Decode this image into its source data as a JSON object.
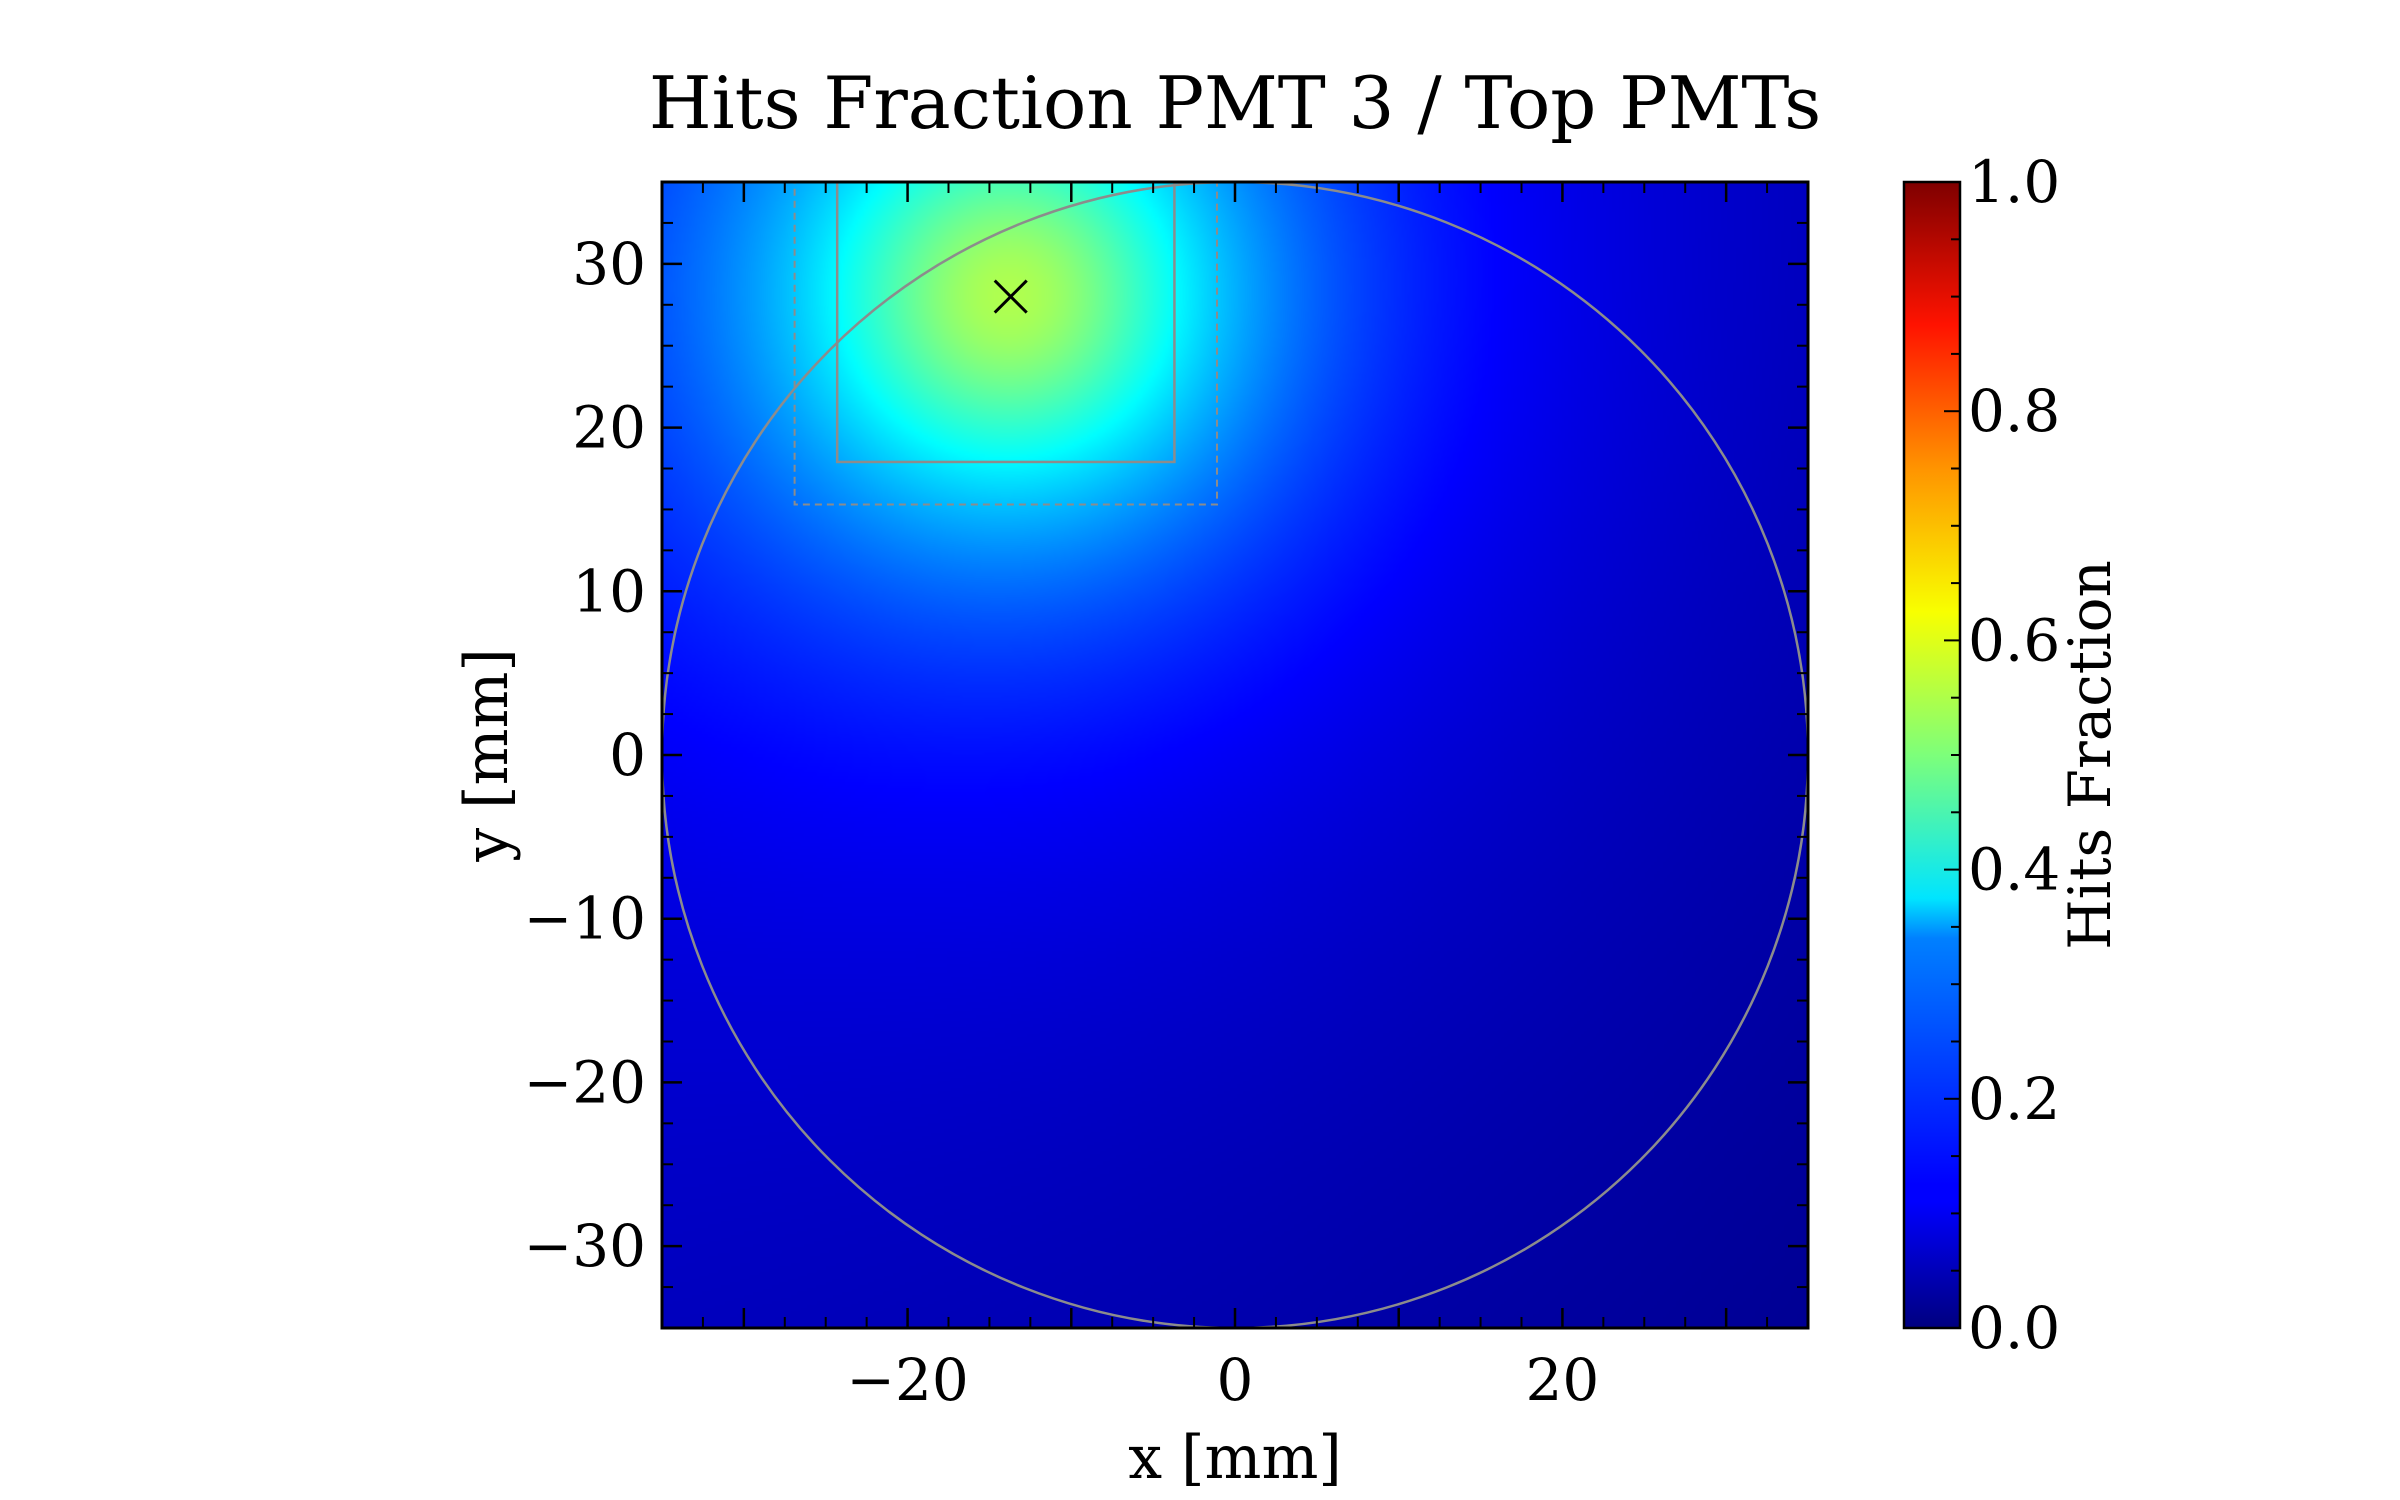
{
  "chart_data": {
    "type": "heatmap",
    "title": "Hits Fraction PMT 3 / Top PMTs",
    "xlabel": "x [mm]",
    "ylabel": "y [mm]",
    "xlim": [
      -35,
      35
    ],
    "ylim": [
      -35,
      35
    ],
    "xticks": [
      -20,
      0,
      20
    ],
    "xtick_labels": [
      "−20",
      "0",
      "20"
    ],
    "yticks": [
      30,
      20,
      10,
      0,
      -10,
      -20,
      -30
    ],
    "ytick_labels": [
      "30",
      "20",
      "10",
      "0",
      "−10",
      "−20",
      "−30"
    ],
    "colorbar": {
      "label": "Hits Fraction",
      "colormap": "jet",
      "range": [
        0.0,
        1.0
      ],
      "ticks": [
        0.0,
        0.2,
        0.4,
        0.6,
        0.8,
        1.0
      ],
      "tick_labels": [
        "0.0",
        "0.2",
        "0.4",
        "0.6",
        "0.8",
        "1.0"
      ]
    },
    "field": {
      "peak_value": 0.56,
      "peak_center": [
        -13.7,
        28
      ],
      "background_value": 0.06
    },
    "overlays": {
      "circle": {
        "center": [
          0,
          0
        ],
        "radius": 35,
        "color": "#8c8c8c"
      },
      "pmt_square": {
        "x": [
          -24.3,
          -3.7
        ],
        "y": [
          17.9,
          35
        ],
        "color": "#8c8c8c",
        "style": "solid"
      },
      "pmt_square_outer": {
        "x": [
          -26.9,
          -1.1
        ],
        "y": [
          15.3,
          35
        ],
        "color": "#8c8c8c",
        "style": "dashed"
      },
      "marker": {
        "x": -13.7,
        "y": 28,
        "symbol": "x",
        "color": "#000000"
      }
    }
  }
}
